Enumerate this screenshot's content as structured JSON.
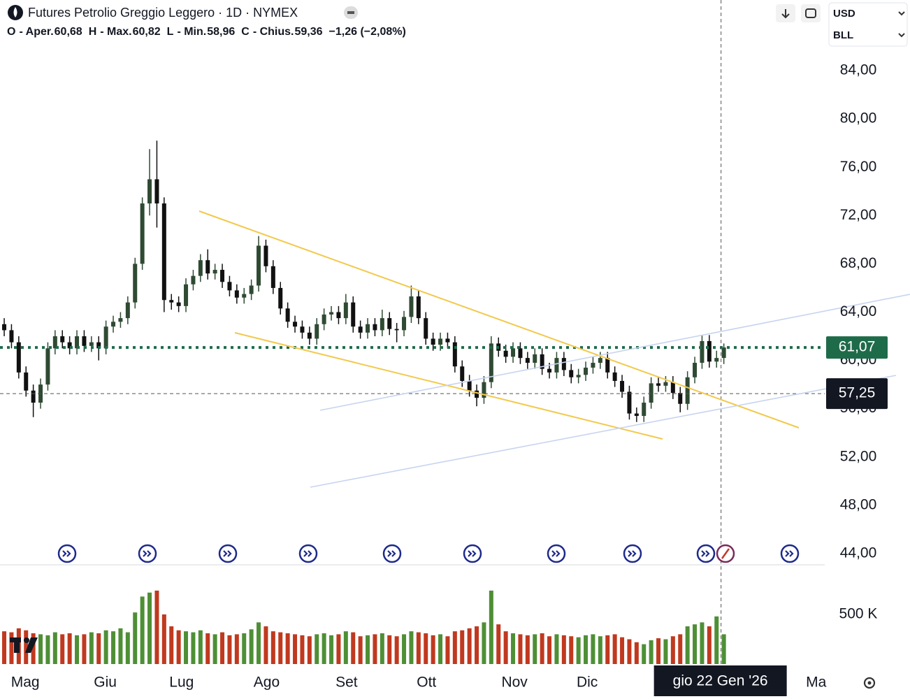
{
  "header": {
    "title": "Futures Petrolio Greggio Leggero · 1D · NYMEX",
    "ohlc": [
      {
        "key": "O",
        "name": "- Aper.",
        "value": "60,68"
      },
      {
        "key": "H",
        "name": "- Max.",
        "value": "60,82"
      },
      {
        "key": "L",
        "name": "- Min.",
        "value": "58,96"
      },
      {
        "key": "C",
        "name": "- Chius.",
        "value": "59,36"
      }
    ],
    "change": "−1,26 (−2,08%)",
    "currency": "USD",
    "unit": "BLL"
  },
  "chart_data": {
    "type": "candlestick",
    "up_color": "#2f4a33",
    "down_color": "#111111",
    "candles": {
      "open": [
        63,
        62.5,
        61.5,
        59,
        57.5,
        56.5,
        58,
        61,
        62,
        61.5,
        61,
        62,
        61.2,
        61.5,
        61,
        62.8,
        63.2,
        63.5,
        64.8,
        68,
        73,
        75,
        73,
        65,
        64.8,
        64.5,
        66.3,
        67,
        68.3,
        67.2,
        67.5,
        66.5,
        65.8,
        65.2,
        65.5,
        66.2,
        69.5,
        67.8,
        66,
        64.3,
        63.2,
        62.8,
        62.3,
        61.8,
        63,
        63.8,
        64,
        63.5,
        64.8,
        62.8,
        62.3,
        63,
        62.5,
        63.5,
        62.6,
        62.5,
        63.6,
        65.3,
        63.5,
        61.8,
        61.3,
        61.8,
        61.5,
        59.5,
        58.3,
        57.5,
        56.9,
        58.2,
        61.4,
        60.8,
        60.3,
        61,
        60.2,
        59.8,
        60.5,
        59.3,
        59,
        60.2,
        59.2,
        58.6,
        58.8,
        59.4,
        59.8,
        60.2,
        59,
        58.3,
        57.4,
        55.6,
        55.4,
        56.5,
        58.1,
        57.9,
        58.2,
        57.3,
        56.4,
        58.6,
        59.8,
        61.6,
        59.9,
        60.2
      ],
      "high": [
        63.5,
        63,
        62,
        59.5,
        58,
        58.5,
        61.5,
        62.5,
        62.5,
        62,
        62.5,
        62.5,
        62,
        62,
        63.3,
        63.7,
        64,
        65.3,
        68.5,
        73.5,
        77.5,
        78.2,
        73.5,
        65.5,
        65.3,
        66.8,
        67.5,
        68.8,
        69.2,
        68,
        68,
        67,
        66.3,
        66,
        66.7,
        70.3,
        70,
        68.3,
        66.5,
        64.8,
        63.7,
        63.3,
        62.8,
        63.5,
        64.3,
        64.5,
        64.5,
        65.5,
        65.3,
        63.3,
        63.5,
        63.5,
        64.2,
        64,
        63.1,
        64.1,
        66.2,
        65.8,
        64,
        62.3,
        62.3,
        62.3,
        62,
        60,
        58.8,
        58,
        58.7,
        62,
        61.9,
        61.3,
        61.5,
        61.5,
        60.7,
        61,
        61,
        59.8,
        60.7,
        60.7,
        59.7,
        59.3,
        59.9,
        60.3,
        60.7,
        60.7,
        59.5,
        58.8,
        57.9,
        56.1,
        57,
        58.6,
        58.6,
        58.7,
        58.7,
        57.8,
        59.1,
        60.3,
        62.1,
        62.1,
        60.8,
        61.4
      ],
      "low": [
        62,
        61,
        58.5,
        57,
        55.3,
        56,
        57.5,
        60.5,
        61,
        60.5,
        60.5,
        60.7,
        60.7,
        60,
        60.5,
        62.3,
        62.7,
        63,
        64.3,
        67.5,
        72,
        71,
        64,
        64.2,
        64,
        64,
        65.8,
        66.5,
        66.7,
        66.7,
        66,
        65.3,
        64.7,
        64.7,
        65,
        65.7,
        67.3,
        65.5,
        63.8,
        62.7,
        62.3,
        61.8,
        61.3,
        61.3,
        62.5,
        63.3,
        63,
        63,
        62.3,
        61.8,
        61.8,
        62,
        62,
        62.1,
        61.5,
        62,
        63.1,
        63,
        61.3,
        60.8,
        60.8,
        61,
        59,
        57.8,
        57,
        56.2,
        56.4,
        57.7,
        60.3,
        59.8,
        59.8,
        59.7,
        59.3,
        59.3,
        58.8,
        58.5,
        58.5,
        58.7,
        58.1,
        58.1,
        58.3,
        58.9,
        59.3,
        58.5,
        57.8,
        56.9,
        55.1,
        54.9,
        54.9,
        56,
        57.4,
        57.4,
        56.8,
        55.7,
        55.9,
        58.1,
        59.3,
        59.4,
        59.4,
        59.7
      ],
      "close": [
        62.5,
        61.5,
        59,
        57.5,
        56.5,
        58,
        61,
        62,
        61.5,
        61,
        62,
        61.2,
        61.5,
        61,
        62.8,
        63.2,
        63.5,
        64.8,
        68,
        73,
        75,
        73,
        65,
        64.8,
        64.5,
        66.3,
        67,
        68.3,
        67.2,
        67.5,
        66.5,
        65.8,
        65.2,
        65.5,
        66.2,
        69.5,
        67.8,
        66,
        64.3,
        63.2,
        62.8,
        62.3,
        61.8,
        63,
        63.8,
        64,
        63.5,
        64.8,
        62.8,
        62.3,
        63,
        62.5,
        63.5,
        62.6,
        62.5,
        63.6,
        65.3,
        63.5,
        61.8,
        61.3,
        61.8,
        61.5,
        59.5,
        58.3,
        57.5,
        56.9,
        58.2,
        61.4,
        60.8,
        60.3,
        61,
        60.2,
        59.8,
        60.5,
        59.3,
        59,
        60.2,
        59.2,
        58.6,
        58.8,
        59.4,
        59.8,
        60.2,
        59,
        58.3,
        57.4,
        55.6,
        55.4,
        56.5,
        58.1,
        57.9,
        58.2,
        57.3,
        56.4,
        58.6,
        59.8,
        61.6,
        59.9,
        60.2,
        61.07
      ]
    },
    "volume": {
      "up_color": "#4e8f36",
      "down_color": "#c0391f",
      "ylim": [
        0,
        1000000
      ],
      "yticks": [
        {
          "value": 500000,
          "label": "500 K"
        }
      ],
      "values": [
        330000,
        320000,
        360000,
        340000,
        310000,
        300000,
        290000,
        320000,
        300000,
        310000,
        290000,
        300000,
        320000,
        310000,
        340000,
        330000,
        360000,
        320000,
        520000,
        680000,
        720000,
        740000,
        500000,
        380000,
        340000,
        330000,
        320000,
        340000,
        310000,
        300000,
        320000,
        290000,
        300000,
        310000,
        350000,
        420000,
        380000,
        330000,
        320000,
        310000,
        300000,
        290000,
        280000,
        300000,
        310000,
        290000,
        300000,
        330000,
        320000,
        280000,
        290000,
        300000,
        310000,
        290000,
        280000,
        300000,
        330000,
        320000,
        310000,
        290000,
        300000,
        280000,
        330000,
        340000,
        360000,
        380000,
        420000,
        740000,
        400000,
        330000,
        310000,
        300000,
        290000,
        300000,
        310000,
        280000,
        300000,
        290000,
        280000,
        270000,
        290000,
        300000,
        280000,
        290000,
        300000,
        270000,
        250000,
        220000,
        200000,
        240000,
        260000,
        250000,
        280000,
        300000,
        380000,
        400000,
        420000,
        380000,
        480000,
        300000
      ]
    },
    "xlim": [
      -0.58,
      112.88
    ],
    "xticks": [
      {
        "value": 2.9,
        "label": "Mag"
      },
      {
        "value": 13.9,
        "label": "Giu"
      },
      {
        "value": 24.4,
        "label": "Lug"
      },
      {
        "value": 36.1,
        "label": "Ago"
      },
      {
        "value": 47.1,
        "label": "Set"
      },
      {
        "value": 58.1,
        "label": "Ott"
      },
      {
        "value": 70.2,
        "label": "Nov"
      },
      {
        "value": 80.2,
        "label": "Dic"
      },
      {
        "value": 111.7,
        "label": "Ma"
      }
    ],
    "ylim": [
      43.07,
      89.85
    ],
    "yticks": [
      {
        "value": 84,
        "label": "84,00"
      },
      {
        "value": 80,
        "label": "80,00"
      },
      {
        "value": 76,
        "label": "76,00"
      },
      {
        "value": 72,
        "label": "72,00"
      },
      {
        "value": 68,
        "label": "68,00"
      },
      {
        "value": 64,
        "label": "64,00"
      },
      {
        "value": 60,
        "label": "60,00"
      },
      {
        "value": 56,
        "label": "56,00"
      },
      {
        "value": 52,
        "label": "52,00"
      },
      {
        "value": 48,
        "label": "48,00"
      },
      {
        "value": 44,
        "label": "44,00"
      }
    ],
    "last_price": {
      "value": 61.07,
      "value_label": "61,07",
      "color": "#1e6b4a"
    },
    "crosshair": {
      "price": 57.25,
      "price_label": "57,25",
      "date_label": "gio 22 Gen '26"
    }
  }
}
